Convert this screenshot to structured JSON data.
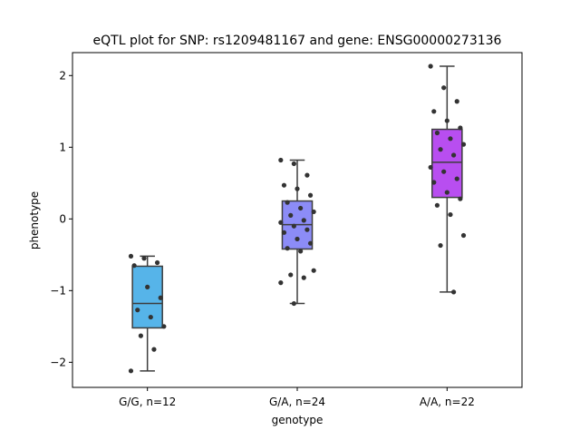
{
  "chart_data": {
    "type": "box",
    "title": "eQTL plot for SNP: rs1209481167 and gene: ENSG00000273136",
    "xlabel": "genotype",
    "ylabel": "phenotype",
    "ylim": [
      -2.35,
      2.32
    ],
    "yticks": [
      -2,
      -1,
      0,
      1,
      2
    ],
    "ytick_labels": [
      "−2",
      "−1",
      "0",
      "1",
      "2"
    ],
    "grid": false,
    "categories": [
      "G/G, n=12",
      "G/A, n=24",
      "A/A, n=22"
    ],
    "colors": [
      "#56b4e9",
      "#8c8cf7",
      "#b84ef0"
    ],
    "box_stats": [
      {
        "whisker_low": -2.12,
        "q1": -1.52,
        "median": -1.18,
        "q3": -0.66,
        "whisker_high": -0.52
      },
      {
        "whisker_low": -1.18,
        "q1": -0.42,
        "median": -0.08,
        "q3": 0.25,
        "whisker_high": 0.82
      },
      {
        "whisker_low": -1.02,
        "q1": 0.3,
        "median": 0.79,
        "q3": 1.25,
        "whisker_high": 2.13
      }
    ],
    "points": [
      [
        -0.52,
        -0.55,
        -0.61,
        -0.65,
        -0.95,
        -1.1,
        -1.27,
        -1.37,
        -1.5,
        -1.63,
        -1.82,
        -2.12
      ],
      [
        0.82,
        0.77,
        0.61,
        0.47,
        0.42,
        0.33,
        0.23,
        0.15,
        0.1,
        0.05,
        -0.02,
        -0.05,
        -0.1,
        -0.15,
        -0.19,
        -0.28,
        -0.34,
        -0.41,
        -0.45,
        -0.72,
        -0.78,
        -0.82,
        -0.89,
        -1.18
      ],
      [
        2.13,
        1.83,
        1.64,
        1.5,
        1.37,
        1.27,
        1.2,
        1.12,
        1.04,
        0.97,
        0.89,
        0.72,
        0.66,
        0.56,
        0.51,
        0.37,
        0.28,
        0.19,
        0.06,
        -0.23,
        -0.37,
        -1.02
      ]
    ]
  }
}
